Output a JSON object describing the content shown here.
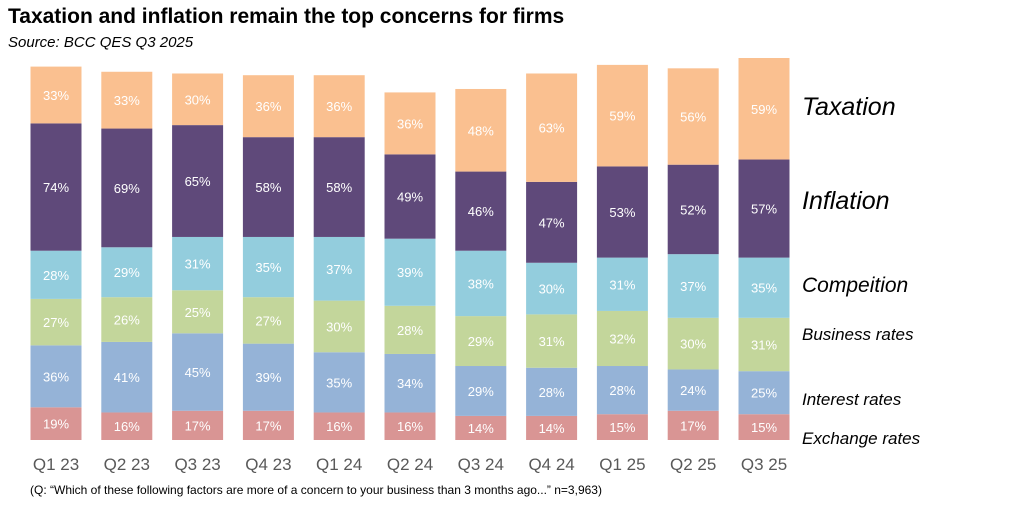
{
  "chart_data": {
    "type": "bar",
    "stacked": true,
    "title": "Taxation and inflation remain the top concerns for firms",
    "subtitle": "Source: BCC QES Q3 2025",
    "footnote": "(Q: “Which of these following factors are more of a concern to your business than 3 months ago...” n=3,963)",
    "categories": [
      "Q1 23",
      "Q2 23",
      "Q3 23",
      "Q4 23",
      "Q1 24",
      "Q2 24",
      "Q3 24",
      "Q4 24",
      "Q1 25",
      "Q2 25",
      "Q3 25"
    ],
    "unit": "%",
    "series": [
      {
        "name": "Exchange rates",
        "color": "#d99594",
        "label_color": "#ffffff",
        "values": [
          19,
          16,
          17,
          17,
          16,
          16,
          14,
          14,
          15,
          17,
          15
        ]
      },
      {
        "name": "Interest rates",
        "color": "#95b3d7",
        "label_color": "#ffffff",
        "values": [
          36,
          41,
          45,
          39,
          35,
          34,
          29,
          28,
          28,
          24,
          25
        ]
      },
      {
        "name": "Business rates",
        "color": "#c3d69b",
        "label_color": "#ffffff",
        "values": [
          27,
          26,
          25,
          27,
          30,
          28,
          29,
          31,
          32,
          30,
          31
        ]
      },
      {
        "name": "Compeition",
        "color": "#93cddd",
        "label_color": "#ffffff",
        "values": [
          28,
          29,
          31,
          35,
          37,
          39,
          38,
          30,
          31,
          37,
          35
        ]
      },
      {
        "name": "Inflation",
        "color": "#5f497a",
        "label_color": "#ffffff",
        "values": [
          74,
          69,
          65,
          58,
          58,
          49,
          46,
          47,
          53,
          52,
          57
        ]
      },
      {
        "name": "Taxation",
        "color": "#fac090",
        "label_color": "#ffffff",
        "values": [
          33,
          33,
          30,
          36,
          36,
          36,
          48,
          63,
          59,
          56,
          59
        ]
      }
    ],
    "ylim": [
      0,
      222
    ],
    "xlabel": "",
    "ylabel": "",
    "grid": false,
    "legend": "right"
  }
}
